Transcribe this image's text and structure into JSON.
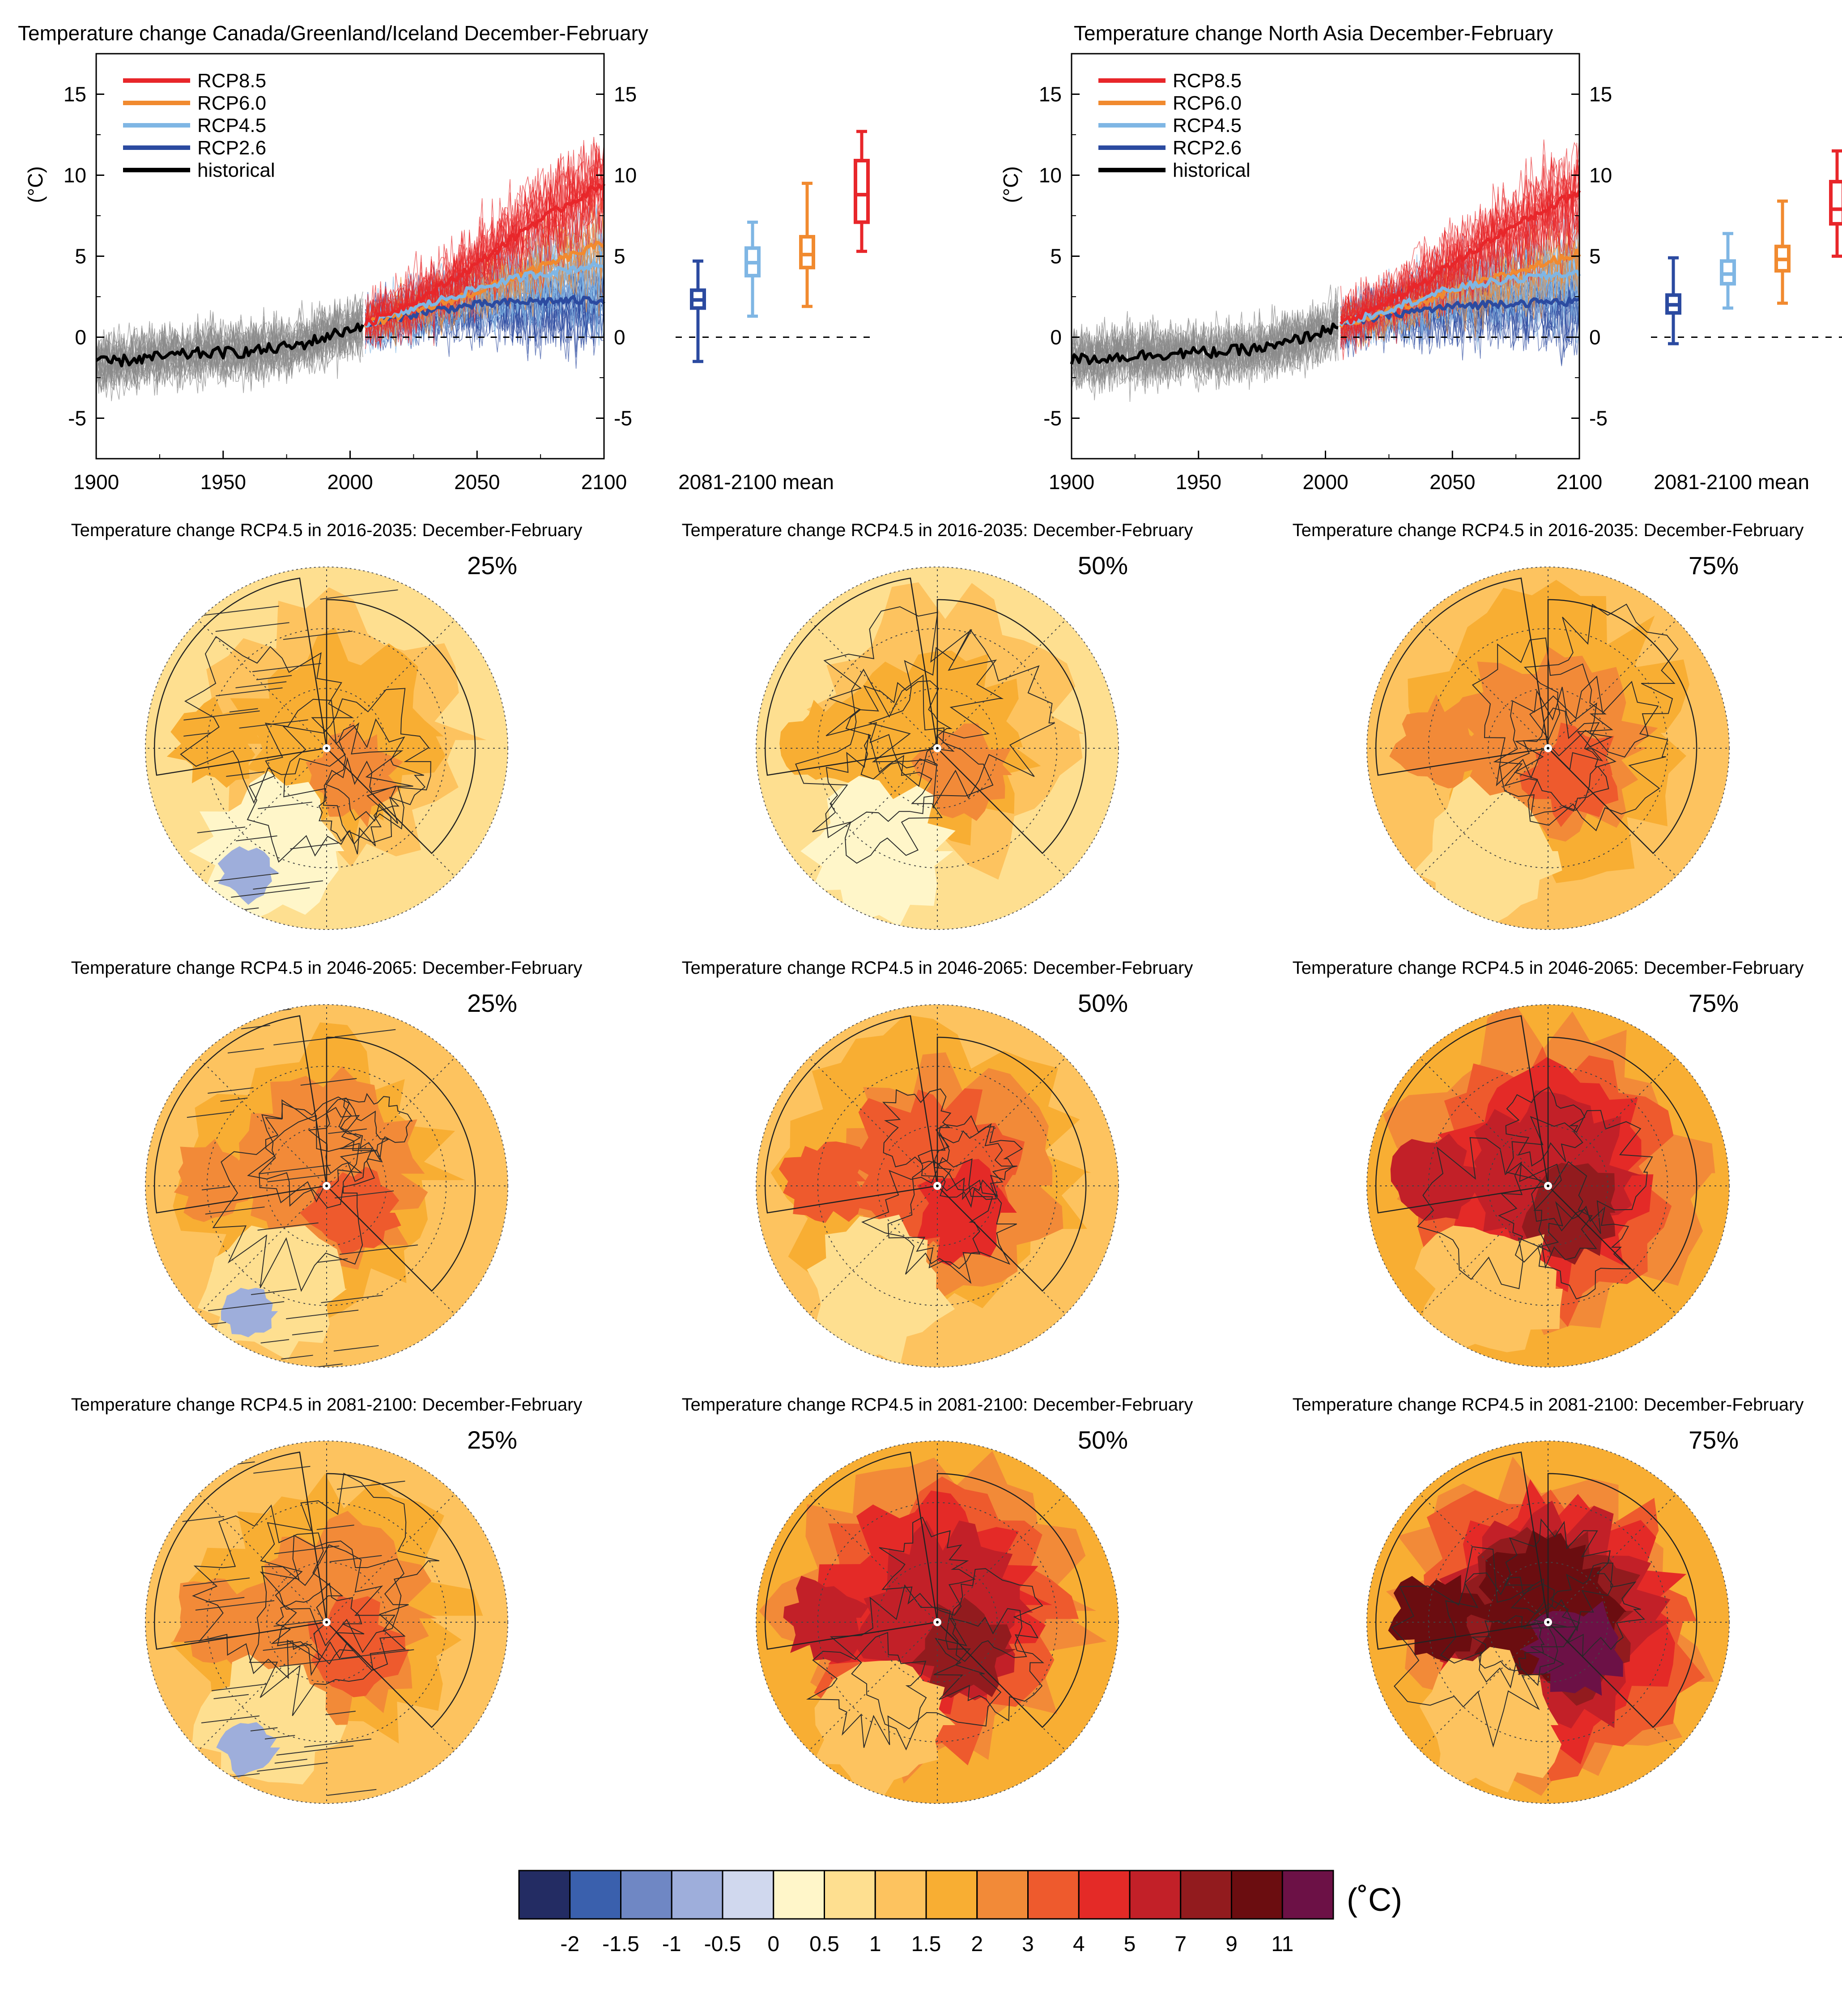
{
  "colors": {
    "rcp85": "#e8262a",
    "rcp60": "#f18a2f",
    "rcp45": "#7fb6e4",
    "rcp26": "#2b4aa0",
    "historical": "#000000",
    "hist_members": "#8a8a8a"
  },
  "legend": [
    {
      "label": "RCP8.5",
      "color_key": "rcp85"
    },
    {
      "label": "RCP6.0",
      "color_key": "rcp60"
    },
    {
      "label": "RCP4.5",
      "color_key": "rcp45"
    },
    {
      "label": "RCP2.6",
      "color_key": "rcp26"
    },
    {
      "label": "historical",
      "color_key": "historical"
    }
  ],
  "boxplot_label": "2081-2100 mean",
  "y_unit": "(°C)",
  "chart_data": [
    {
      "type": "line",
      "title": "Temperature change Canada/Greenland/Iceland December-February",
      "xlim": [
        1900,
        2100
      ],
      "ylim": [
        -7.5,
        17.5
      ],
      "xticks": [
        1900,
        1950,
        2000,
        2050,
        2100
      ],
      "yticks": [
        -5,
        0,
        5,
        10,
        15
      ],
      "series": [
        {
          "name": "historical",
          "x": [
            1900,
            1920,
            1940,
            1960,
            1980,
            2000,
            2005
          ],
          "y": [
            -1.6,
            -1.3,
            -1.0,
            -0.9,
            -0.5,
            0.5,
            0.8
          ]
        },
        {
          "name": "RCP2.6",
          "x": [
            2006,
            2030,
            2050,
            2070,
            2100
          ],
          "y": [
            0.8,
            1.6,
            2.0,
            2.2,
            2.3
          ]
        },
        {
          "name": "RCP4.5",
          "x": [
            2006,
            2030,
            2050,
            2070,
            2100
          ],
          "y": [
            0.8,
            2.0,
            3.0,
            3.8,
            4.5
          ]
        },
        {
          "name": "RCP6.0",
          "x": [
            2006,
            2030,
            2050,
            2070,
            2100
          ],
          "y": [
            0.8,
            1.8,
            2.8,
            4.0,
            5.8
          ]
        },
        {
          "name": "RCP8.5",
          "x": [
            2006,
            2030,
            2050,
            2070,
            2100
          ],
          "y": [
            0.8,
            2.6,
            4.5,
            6.8,
            9.5
          ]
        }
      ],
      "boxplots": [
        {
          "name": "RCP2.6",
          "min": -1.5,
          "q1": 1.8,
          "median": 2.3,
          "q3": 2.9,
          "max": 4.7
        },
        {
          "name": "RCP4.5",
          "min": 1.3,
          "q1": 3.8,
          "median": 4.6,
          "q3": 5.5,
          "max": 7.1
        },
        {
          "name": "RCP6.0",
          "min": 1.9,
          "q1": 4.3,
          "median": 5.1,
          "q3": 6.2,
          "max": 9.5
        },
        {
          "name": "RCP8.5",
          "min": 5.3,
          "q1": 7.1,
          "median": 8.8,
          "q3": 10.9,
          "max": 12.7
        }
      ]
    },
    {
      "type": "line",
      "title": "Temperature change North Asia December-February",
      "xlim": [
        1900,
        2100
      ],
      "ylim": [
        -7.5,
        17.5
      ],
      "xticks": [
        1900,
        1950,
        2000,
        2050,
        2100
      ],
      "yticks": [
        -5,
        0,
        5,
        10,
        15
      ],
      "series": [
        {
          "name": "historical",
          "x": [
            1900,
            1920,
            1940,
            1960,
            1980,
            2000,
            2005
          ],
          "y": [
            -1.4,
            -1.2,
            -1.0,
            -0.9,
            -0.6,
            0.4,
            0.8
          ]
        },
        {
          "name": "RCP2.6",
          "x": [
            2006,
            2030,
            2050,
            2070,
            2100
          ],
          "y": [
            0.8,
            1.5,
            1.9,
            2.1,
            2.2
          ]
        },
        {
          "name": "RCP4.5",
          "x": [
            2006,
            2030,
            2050,
            2070,
            2100
          ],
          "y": [
            0.8,
            2.0,
            3.0,
            3.5,
            4.0
          ]
        },
        {
          "name": "RCP6.0",
          "x": [
            2006,
            2030,
            2050,
            2070,
            2100
          ],
          "y": [
            0.8,
            1.8,
            2.8,
            3.8,
            5.2
          ]
        },
        {
          "name": "RCP8.5",
          "x": [
            2006,
            2030,
            2050,
            2070,
            2100
          ],
          "y": [
            0.8,
            2.6,
            4.5,
            6.5,
            9.0
          ]
        }
      ],
      "boxplots": [
        {
          "name": "RCP2.6",
          "min": -0.4,
          "q1": 1.5,
          "median": 2.0,
          "q3": 2.6,
          "max": 4.9
        },
        {
          "name": "RCP4.5",
          "min": 1.8,
          "q1": 3.3,
          "median": 3.9,
          "q3": 4.7,
          "max": 6.4
        },
        {
          "name": "RCP6.0",
          "min": 2.1,
          "q1": 4.1,
          "median": 4.8,
          "q3": 5.6,
          "max": 8.4
        },
        {
          "name": "RCP8.5",
          "min": 5.0,
          "q1": 7.0,
          "median": 7.9,
          "q3": 9.6,
          "max": 11.5
        }
      ]
    },
    {
      "type": "heatmap",
      "panels": [
        {
          "title": "Temperature change RCP4.5 in 2016-2035: December-February",
          "percentile": "25%",
          "base_level": 1,
          "center_level": 3,
          "hatched": true,
          "blue_patch": true
        },
        {
          "title": "Temperature change RCP4.5 in 2016-2035: December-February",
          "percentile": "50%",
          "base_level": 1,
          "center_level": 3,
          "hatched": false,
          "blue_patch": false
        },
        {
          "title": "Temperature change RCP4.5 in 2016-2035: December-February",
          "percentile": "75%",
          "base_level": 2,
          "center_level": 4,
          "hatched": false,
          "blue_patch": false
        },
        {
          "title": "Temperature change RCP4.5 in 2046-2065: December-February",
          "percentile": "25%",
          "base_level": 2,
          "center_level": 4,
          "hatched": true,
          "blue_patch": true
        },
        {
          "title": "Temperature change RCP4.5 in 2046-2065: December-February",
          "percentile": "50%",
          "base_level": 2,
          "center_level": 5,
          "hatched": false,
          "blue_patch": false
        },
        {
          "title": "Temperature change RCP4.5 in 2046-2065: December-February",
          "percentile": "75%",
          "base_level": 3,
          "center_level": 7,
          "hatched": false,
          "blue_patch": false
        },
        {
          "title": "Temperature change RCP4.5 in 2081-2100: December-February",
          "percentile": "25%",
          "base_level": 2,
          "center_level": 4,
          "hatched": true,
          "blue_patch": true
        },
        {
          "title": "Temperature change RCP4.5 in 2081-2100: December-February",
          "percentile": "50%",
          "base_level": 3,
          "center_level": 7,
          "hatched": false,
          "blue_patch": false
        },
        {
          "title": "Temperature change RCP4.5 in 2081-2100: December-February",
          "percentile": "75%",
          "base_level": 3,
          "center_level": 9,
          "hatched": false,
          "blue_patch": false
        }
      ],
      "colorbar": {
        "unit": "(˚C)",
        "colors": [
          "#232c63",
          "#3a60ad",
          "#6f87c4",
          "#9eaedb",
          "#d0d8ee",
          "#fff6c9",
          "#fedf90",
          "#fdc35f",
          "#f8ae33",
          "#f28a38",
          "#ee5a2d",
          "#e42a27",
          "#c22028",
          "#921b1e",
          "#6b0d10",
          "#6c1146"
        ],
        "tick_labels": [
          "-2",
          "-1.5",
          "-1",
          "-0.5",
          "0",
          "0.5",
          "1",
          "1.5",
          "2",
          "3",
          "4",
          "5",
          "7",
          "9",
          "11"
        ]
      }
    }
  ]
}
